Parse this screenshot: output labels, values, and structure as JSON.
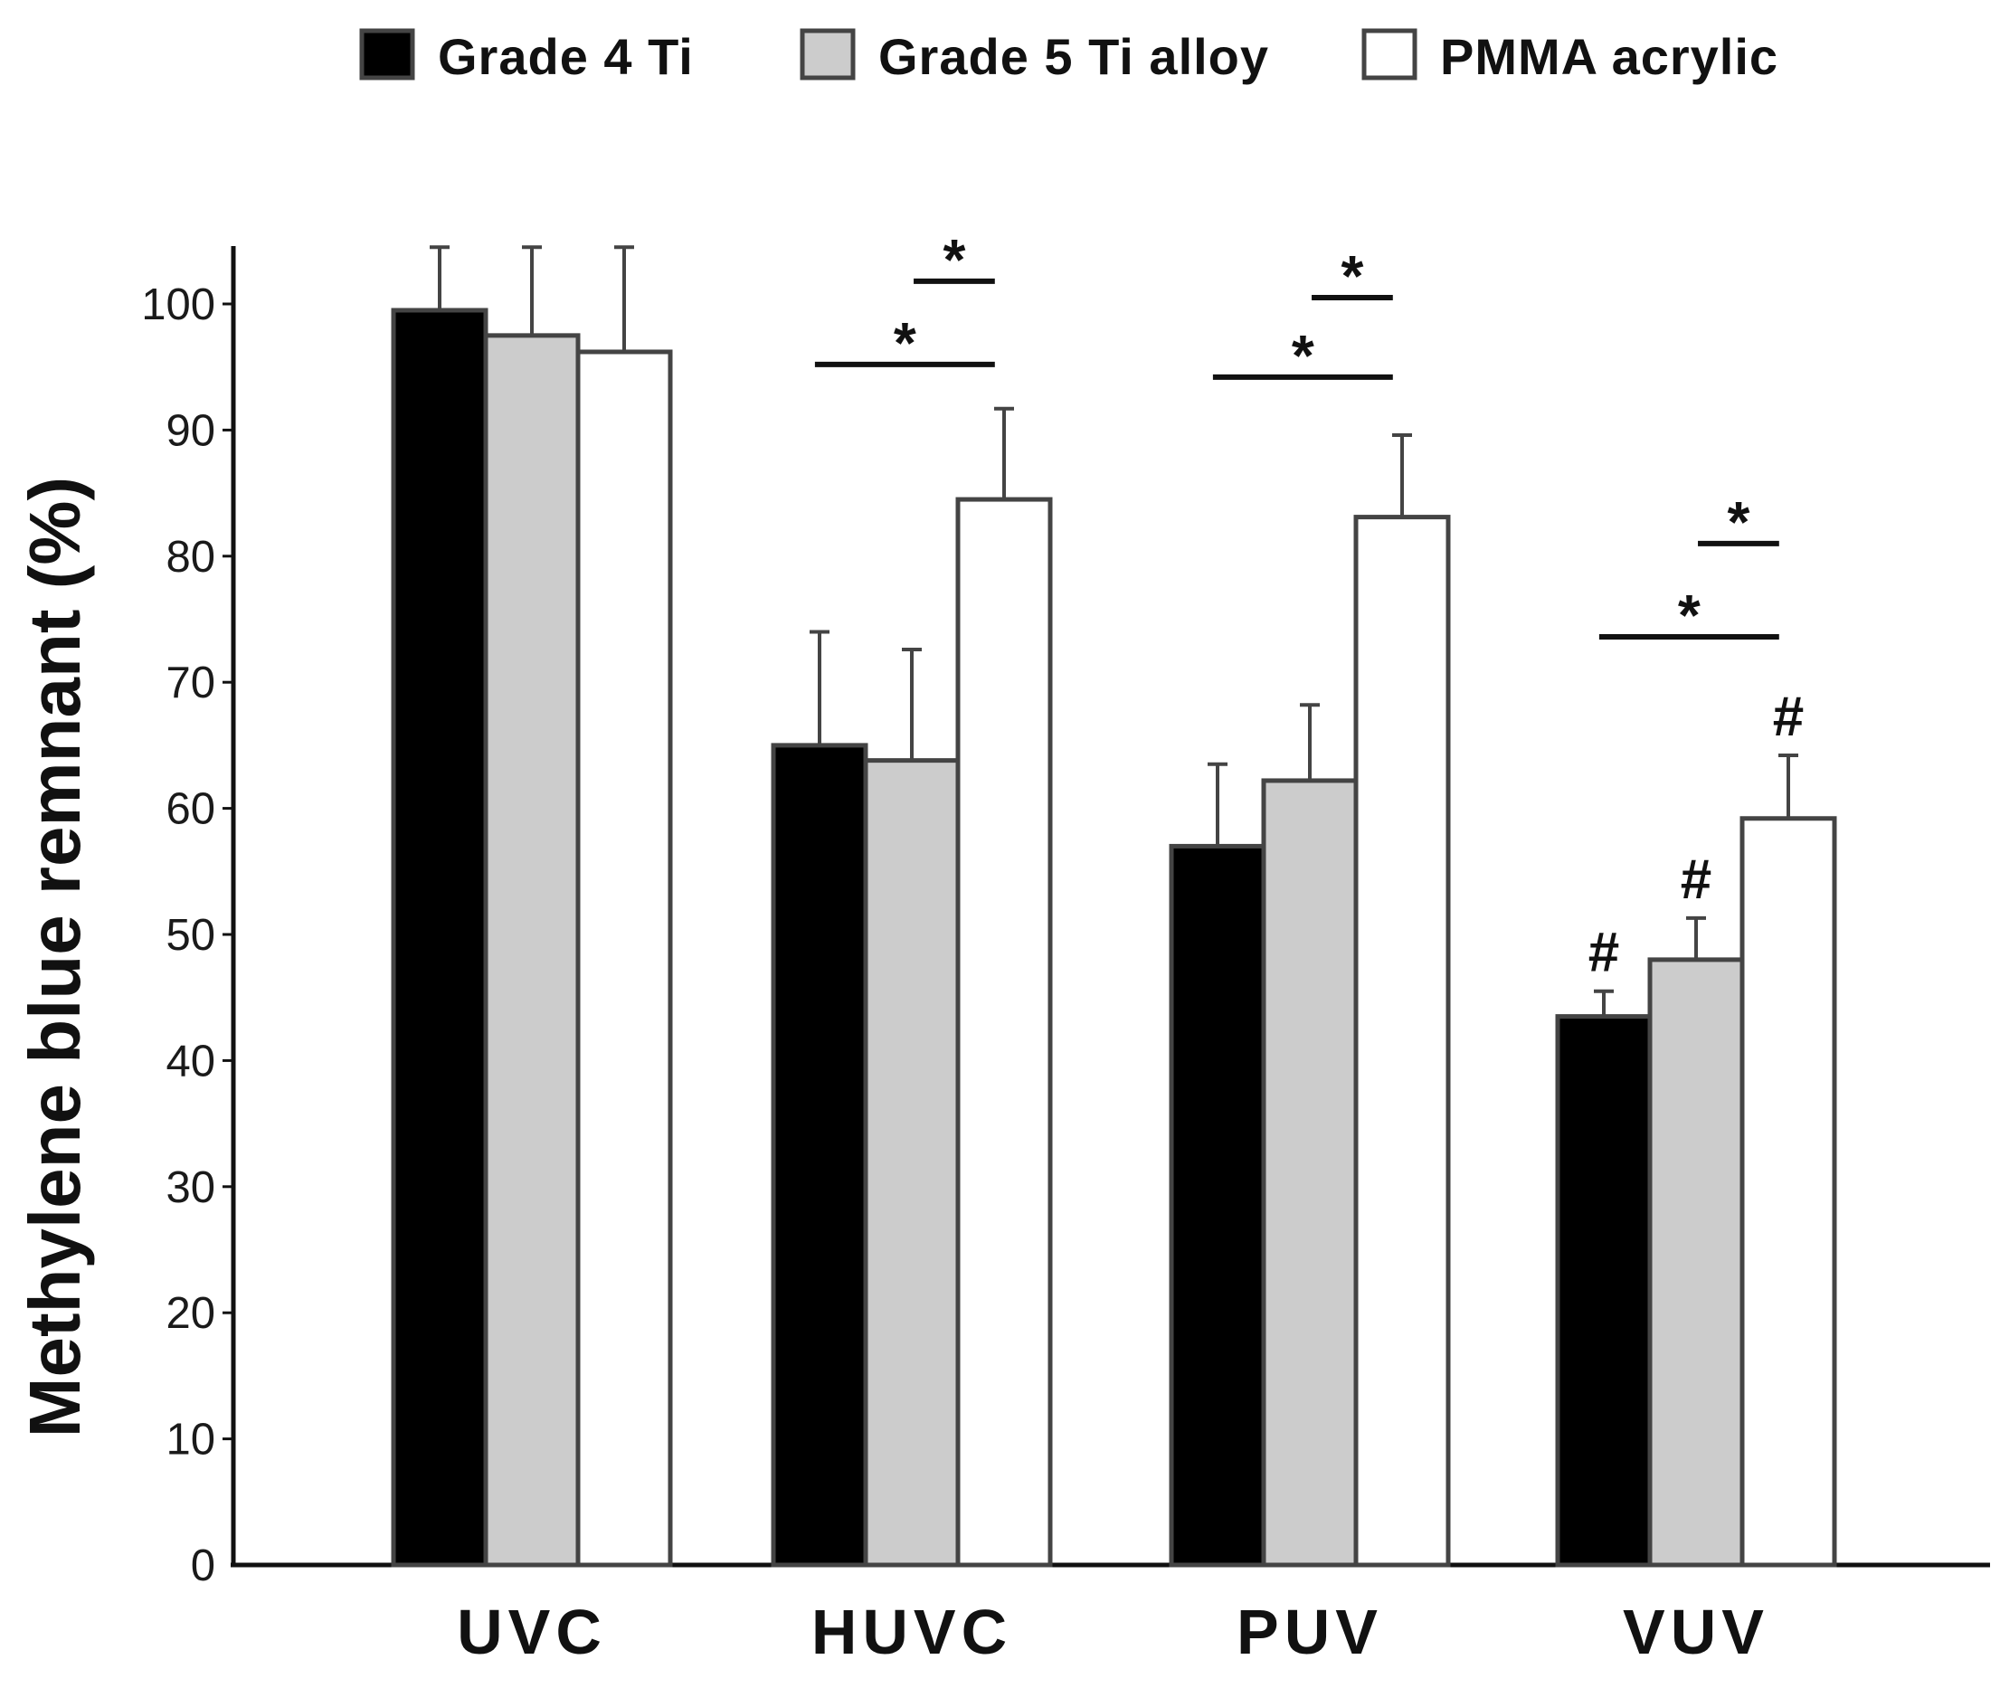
{
  "chart_data": {
    "type": "bar",
    "title": "",
    "xlabel": "",
    "ylabel": "Methylene blue remnant (%)",
    "ylim": [
      0,
      105
    ],
    "yticks": [
      0,
      10,
      20,
      30,
      40,
      50,
      60,
      70,
      80,
      90,
      100
    ],
    "categories": [
      "UVC",
      "HUVC",
      "PUV",
      "VUV"
    ],
    "legend_position": "top-center",
    "series": [
      {
        "name": "Grade 4 Ti",
        "color": "#000000",
        "values": [
          99.5,
          65.0,
          57.0,
          43.5
        ],
        "errors": [
          5.0,
          9.0,
          6.5,
          2.0
        ]
      },
      {
        "name": "Grade 5 Ti alloy",
        "color": "#cccccc",
        "values": [
          97.5,
          63.8,
          62.2,
          48.0
        ],
        "errors": [
          7.0,
          8.8,
          6.0,
          3.3
        ]
      },
      {
        "name": "PMMA acrylic",
        "color": "#ffffff",
        "values": [
          96.2,
          84.5,
          83.1,
          59.2
        ],
        "errors": [
          8.3,
          7.2,
          6.5,
          5.0
        ]
      }
    ],
    "significance_brackets": [
      {
        "category": "HUVC",
        "from_series": 1,
        "to_series": 2,
        "label": "*",
        "y": 101.8
      },
      {
        "category": "HUVC",
        "from_series": 0,
        "to_series": 2,
        "label": "*",
        "y": 95.2
      },
      {
        "category": "PUV",
        "from_series": 1,
        "to_series": 2,
        "label": "*",
        "y": 100.5
      },
      {
        "category": "PUV",
        "from_series": 0,
        "to_series": 2,
        "label": "*",
        "y": 94.2
      },
      {
        "category": "VUV",
        "from_series": 1,
        "to_series": 2,
        "label": "*",
        "y": 81.0
      },
      {
        "category": "VUV",
        "from_series": 0,
        "to_series": 2,
        "label": "*",
        "y": 73.6
      }
    ],
    "markers": [
      {
        "category": "VUV",
        "series": 0,
        "label": "#"
      },
      {
        "category": "VUV",
        "series": 1,
        "label": "#"
      },
      {
        "category": "VUV",
        "series": 2,
        "label": "#"
      }
    ]
  }
}
